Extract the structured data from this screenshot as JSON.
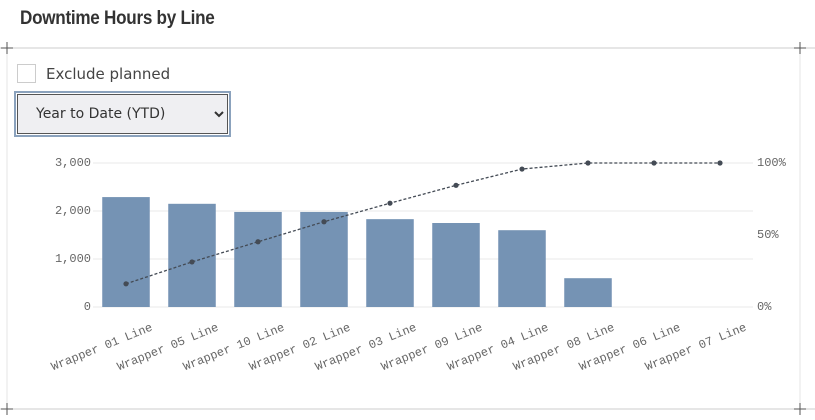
{
  "title": "Downtime Hours by Line",
  "checkbox_label": "Exclude planned",
  "select_value": "Year to Date (YTD)",
  "chart_data": {
    "type": "bar",
    "categories": [
      "Wrapper 01 Line",
      "Wrapper 05 Line",
      "Wrapper 10 Line",
      "Wrapper 02 Line",
      "Wrapper 03 Line",
      "Wrapper 09 Line",
      "Wrapper 04 Line",
      "Wrapper 08 Line",
      "Wrapper 06 Line",
      "Wrapper 07 Line"
    ],
    "series": [
      {
        "color": "#7593b4",
        "values": [
          2290,
          2150,
          1980,
          1980,
          1830,
          1750,
          1600,
          600,
          0,
          0
        ]
      },
      {
        "type": "line",
        "axis": "y2",
        "color": "#444b55",
        "values": [
          16.1,
          31.3,
          45.3,
          59.2,
          72.1,
          84.5,
          95.8,
          100,
          100,
          100
        ]
      }
    ],
    "ylim": [
      0,
      3000
    ],
    "yticks": [
      0,
      {
        "value": 1000,
        "label": "1,000"
      },
      {
        "value": 2000,
        "label": "2,000"
      },
      {
        "value": 3000,
        "label": "3,000"
      }
    ],
    "y2lim": [
      0,
      100
    ],
    "y2ticks": [
      {
        "value": 0,
        "label": "0%"
      },
      {
        "value": 50,
        "label": "50%"
      },
      {
        "value": 100,
        "label": "100%"
      }
    ],
    "grid": true
  }
}
